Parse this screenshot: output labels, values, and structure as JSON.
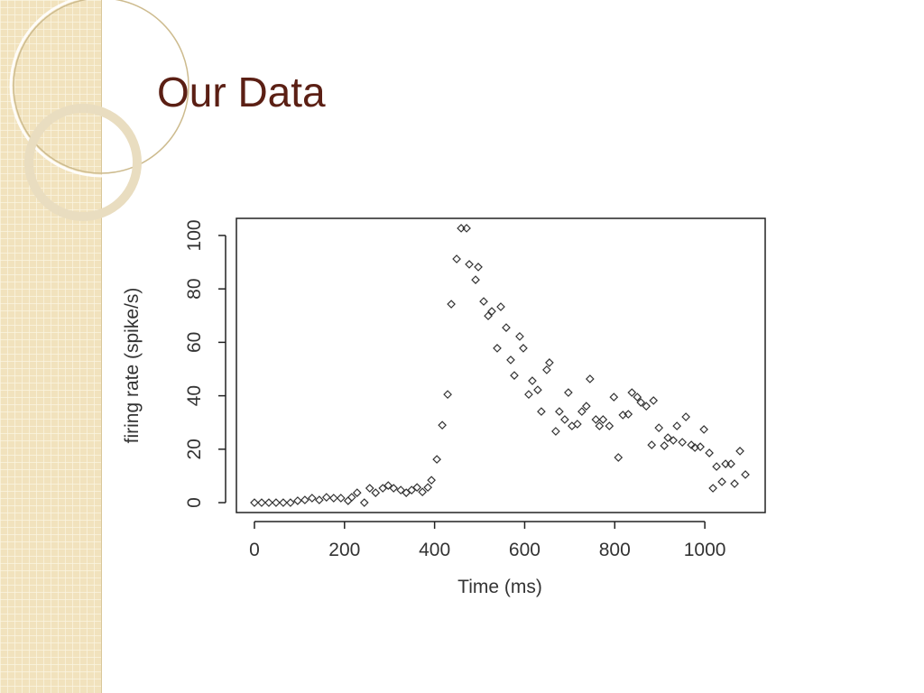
{
  "title": "Our Data",
  "chart_data": {
    "type": "scatter",
    "x_label": "Time (ms)",
    "y_label": "firing rate (spike/s)",
    "color": "#333333",
    "xlim": [
      -40,
      1134
    ],
    "ylim": [
      -3.7,
      106.4
    ],
    "xticks": [
      0,
      200,
      400,
      600,
      800,
      1000
    ],
    "yticks": [
      0,
      20,
      40,
      60,
      80,
      100
    ],
    "x": [
      0,
      16,
      32,
      48,
      64,
      80,
      96,
      112,
      128,
      144,
      160,
      176,
      192,
      208,
      216,
      228,
      244,
      256,
      269,
      285,
      297,
      309,
      325,
      337,
      349,
      361,
      373,
      385,
      393,
      405,
      417,
      429,
      437,
      449,
      459,
      471,
      477,
      491,
      497,
      509,
      519,
      527,
      539,
      547,
      559,
      569,
      577,
      589,
      597,
      609,
      617,
      629,
      637,
      649,
      655,
      669,
      677,
      689,
      697,
      705,
      717,
      727,
      737,
      745,
      758,
      766,
      774,
      788,
      798,
      808,
      818,
      830,
      838,
      850,
      858,
      870,
      882,
      886,
      898,
      910,
      918,
      930,
      938,
      950,
      958,
      970,
      978,
      990,
      998,
      1010,
      1018,
      1026,
      1038,
      1046,
      1058,
      1066,
      1078,
      1090
    ],
    "values": [
      0,
      0,
      0,
      0,
      0,
      0,
      0.7,
      1,
      1.7,
      1,
      2,
      1.7,
      1.7,
      0.7,
      2,
      3.7,
      0,
      5.4,
      3.7,
      5.4,
      6.4,
      5.4,
      4.7,
      3.7,
      4.7,
      5.7,
      4,
      5.7,
      8.4,
      16.2,
      29,
      40.5,
      74.3,
      91.2,
      102.7,
      102.7,
      89.2,
      83.4,
      88.2,
      75.3,
      69.9,
      71.6,
      57.8,
      73.3,
      65.5,
      53.4,
      47.6,
      62.2,
      57.8,
      40.5,
      45.6,
      42.2,
      34.1,
      49.7,
      52.4,
      26.7,
      34.1,
      31.1,
      41.2,
      28.7,
      29.4,
      34.1,
      36.1,
      46.3,
      31.1,
      28.7,
      31.1,
      28.7,
      39.5,
      16.9,
      32.8,
      33.1,
      41.2,
      39.5,
      37.5,
      36.1,
      21.6,
      38.2,
      28,
      21.3,
      24.3,
      23.3,
      28.7,
      22.6,
      32.1,
      21.6,
      20.6,
      20.9,
      27.4,
      18.6,
      5.4,
      13.5,
      7.8,
      14.5,
      14.5,
      7.1,
      19.3,
      10.5
    ]
  }
}
